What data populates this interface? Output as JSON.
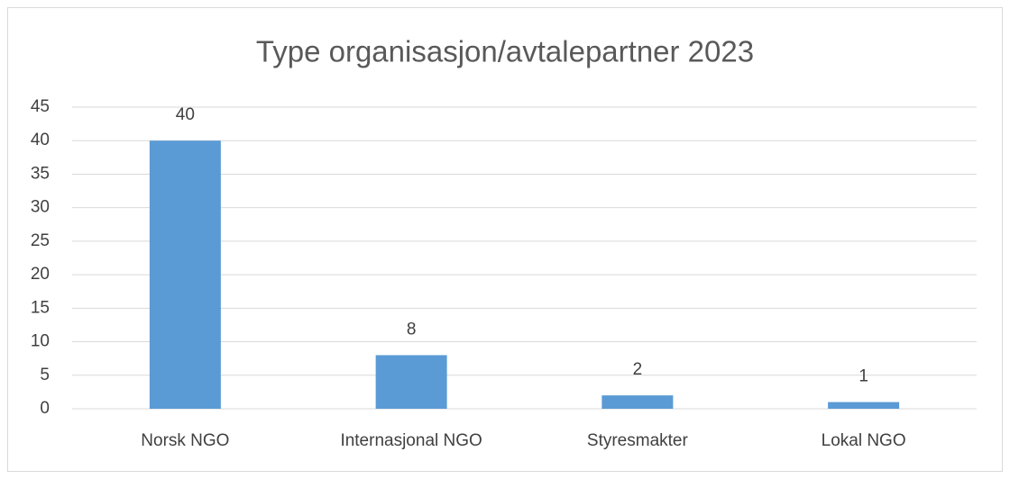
{
  "chart_data": {
    "type": "bar",
    "title": "Type organisasjon/avtalepartner 2023",
    "categories": [
      "Norsk NGO",
      "Internasjonal NGO",
      "Styresmakter",
      "Lokal NGO"
    ],
    "values": [
      40,
      8,
      2,
      1
    ],
    "color": "#5b9bd5",
    "ylim": [
      0,
      45
    ],
    "yticks": [
      0,
      5,
      10,
      15,
      20,
      25,
      30,
      35,
      40,
      45
    ],
    "grid": true,
    "data_labels": true
  }
}
